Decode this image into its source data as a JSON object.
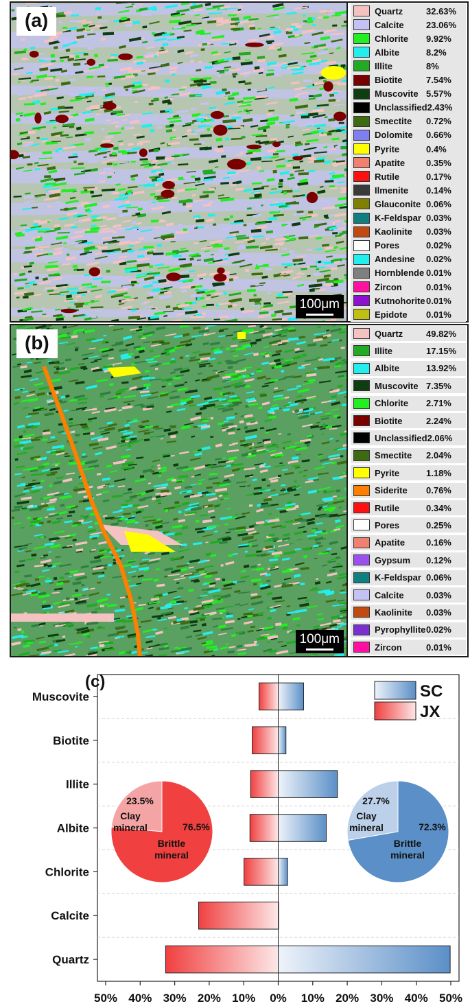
{
  "panel_a": {
    "label": "(a)",
    "scale": "100μm",
    "legend": [
      {
        "name": "Quartz",
        "value": "32.63%",
        "color": "#f4c2c0"
      },
      {
        "name": "Calcite",
        "value": "23.06%",
        "color": "#c4c2f4"
      },
      {
        "name": "Chlorite",
        "value": "9.92%",
        "color": "#22ee22"
      },
      {
        "name": "Albite",
        "value": "8.2%",
        "color": "#22eeee"
      },
      {
        "name": "Illite",
        "value": "8%",
        "color": "#22aa22"
      },
      {
        "name": "Biotite",
        "value": "7.54%",
        "color": "#7a0000"
      },
      {
        "name": "Muscovite",
        "value": "5.57%",
        "color": "#0e3d12"
      },
      {
        "name": "Unclassified",
        "value": "2.43%",
        "color": "#000000"
      },
      {
        "name": "Smectite",
        "value": "0.72%",
        "color": "#3d6b12"
      },
      {
        "name": "Dolomite",
        "value": "0.66%",
        "color": "#7f7ff0"
      },
      {
        "name": "Pyrite",
        "value": "0.4%",
        "color": "#ffff00"
      },
      {
        "name": "Apatite",
        "value": "0.35%",
        "color": "#f08070"
      },
      {
        "name": "Rutile",
        "value": "0.17%",
        "color": "#ff1010"
      },
      {
        "name": "Ilmenite",
        "value": "0.14%",
        "color": "#3a3a3a"
      },
      {
        "name": "Glauconite",
        "value": "0.06%",
        "color": "#7f7f00"
      },
      {
        "name": "K-Feldspar",
        "value": "0.03%",
        "color": "#0f7f7f"
      },
      {
        "name": "Kaolinite",
        "value": "0.03%",
        "color": "#c04a10"
      },
      {
        "name": "Pores",
        "value": "0.02%",
        "color": "#ffffff"
      },
      {
        "name": "Andesine",
        "value": "0.02%",
        "color": "#22eeee"
      },
      {
        "name": "Hornblende",
        "value": "0.01%",
        "color": "#7f7f7f"
      },
      {
        "name": "Zircon",
        "value": "0.01%",
        "color": "#ff10a0"
      },
      {
        "name": "Kutnohorite",
        "value": "0.01%",
        "color": "#9010d0"
      },
      {
        "name": "Epidote",
        "value": "0.01%",
        "color": "#c0c010"
      }
    ]
  },
  "panel_b": {
    "label": "(b)",
    "scale": "100μm",
    "legend": [
      {
        "name": "Quartz",
        "value": "49.82%",
        "color": "#f4c2c0"
      },
      {
        "name": "Illite",
        "value": "17.15%",
        "color": "#22aa22"
      },
      {
        "name": "Albite",
        "value": "13.92%",
        "color": "#22eeee"
      },
      {
        "name": "Muscovite",
        "value": "7.35%",
        "color": "#0e3d12"
      },
      {
        "name": "Chlorite",
        "value": "2.71%",
        "color": "#22ee22"
      },
      {
        "name": "Biotite",
        "value": "2.24%",
        "color": "#7a0000"
      },
      {
        "name": "Unclassified",
        "value": "2.06%",
        "color": "#000000"
      },
      {
        "name": "Smectite",
        "value": "2.04%",
        "color": "#3d6b12"
      },
      {
        "name": "Pyrite",
        "value": "1.18%",
        "color": "#ffff00"
      },
      {
        "name": "Siderite",
        "value": "0.76%",
        "color": "#ff7f00"
      },
      {
        "name": "Rutile",
        "value": "0.34%",
        "color": "#ff1010"
      },
      {
        "name": "Pores",
        "value": "0.25%",
        "color": "#ffffff"
      },
      {
        "name": "Apatite",
        "value": "0.16%",
        "color": "#f08070"
      },
      {
        "name": "Gypsum",
        "value": "0.12%",
        "color": "#9a50f0"
      },
      {
        "name": "K-Feldspar",
        "value": "0.06%",
        "color": "#0f7f7f"
      },
      {
        "name": "Calcite",
        "value": "0.03%",
        "color": "#c4c2f4"
      },
      {
        "name": "Kaolinite",
        "value": "0.03%",
        "color": "#c04a10"
      },
      {
        "name": "Pyrophyllite",
        "value": "0.02%",
        "color": "#7a30d0"
      },
      {
        "name": "Zircon",
        "value": "0.01%",
        "color": "#ff10a0"
      }
    ]
  },
  "panel_c": {
    "label": "(c)",
    "chart_data": {
      "type": "bar",
      "orientation": "horizontal-diverging",
      "categories": [
        "Muscovite",
        "Biotite",
        "Illite",
        "Albite",
        "Chlorite",
        "Calcite",
        "Quartz"
      ],
      "series": [
        {
          "name": "SC",
          "color": "#5b8fc7",
          "direction": "right",
          "values": [
            7.35,
            2.24,
            17.15,
            13.92,
            2.71,
            0.03,
            49.82
          ]
        },
        {
          "name": "JX",
          "color": "#f04040",
          "direction": "left",
          "values": [
            5.57,
            7.54,
            8.0,
            8.2,
            9.92,
            23.06,
            32.63
          ]
        }
      ],
      "xticks": [
        "50%",
        "40%",
        "30%",
        "20%",
        "10%",
        "0%",
        "10%",
        "20%",
        "30%",
        "40%",
        "50%"
      ],
      "xlim": [
        -50,
        50
      ],
      "grid": "horizontal dashed",
      "legend_position": "top-right",
      "pies": [
        {
          "for": "JX",
          "slices": [
            {
              "label": "Clay mineral",
              "percent": "23.5%",
              "value": 23.5,
              "color": "#f4a4a4"
            },
            {
              "label": "Brittle mineral",
              "percent": "76.5%",
              "value": 76.5,
              "color": "#f04040"
            }
          ]
        },
        {
          "for": "SC",
          "slices": [
            {
              "label": "Clay mineral",
              "percent": "27.7%",
              "value": 27.7,
              "color": "#bcd0ea"
            },
            {
              "label": "Brittle mineral",
              "percent": "72.3%",
              "value": 72.3,
              "color": "#5b8fc7"
            }
          ]
        }
      ]
    }
  }
}
